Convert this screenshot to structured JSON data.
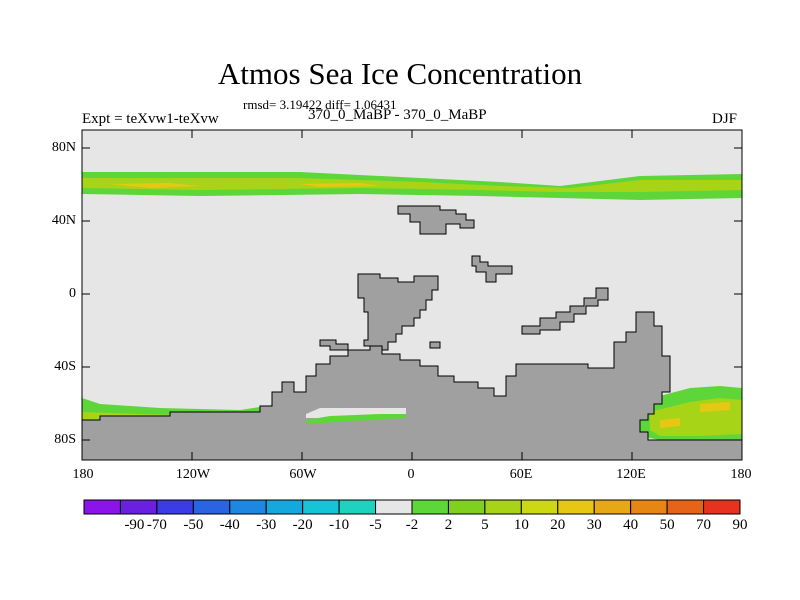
{
  "title": "Atmos Sea Ice Concentration",
  "stats": "rmsd= 3.19422  diff= 1.06431",
  "left_label": "Expt = teXvw1-teXvw",
  "center_label": "370_0_MaBP - 370_0_MaBP",
  "right_label": "DJF",
  "y_ticks": [
    "80N",
    "40N",
    "0",
    "40S",
    "80S"
  ],
  "x_ticks": [
    "180",
    "120W",
    "60W",
    "0",
    "60E",
    "120E",
    "180"
  ],
  "colorbar": {
    "labels": [
      "-90",
      "-70",
      "-50",
      "-40",
      "-30",
      "-20",
      "-10",
      "-5",
      "-2",
      "2",
      "5",
      "10",
      "20",
      "30",
      "40",
      "50",
      "70",
      "90"
    ],
    "colors": [
      "#8a14ea",
      "#6a20e0",
      "#3c3ce6",
      "#2a64e0",
      "#1e88e0",
      "#14a8dc",
      "#16c4d8",
      "#1ed2c0",
      "#e6e6e6",
      "#5ed63a",
      "#80d020",
      "#a8d418",
      "#ccd814",
      "#e6c814",
      "#e6a814",
      "#e68614",
      "#e6641a",
      "#e6321e"
    ]
  },
  "colors": {
    "ocean": "#e6e6e6",
    "land": "#a0a0a0",
    "ice_low": "#5ed63a",
    "ice_mid": "#a8d418",
    "ice_high": "#e6c814"
  }
}
